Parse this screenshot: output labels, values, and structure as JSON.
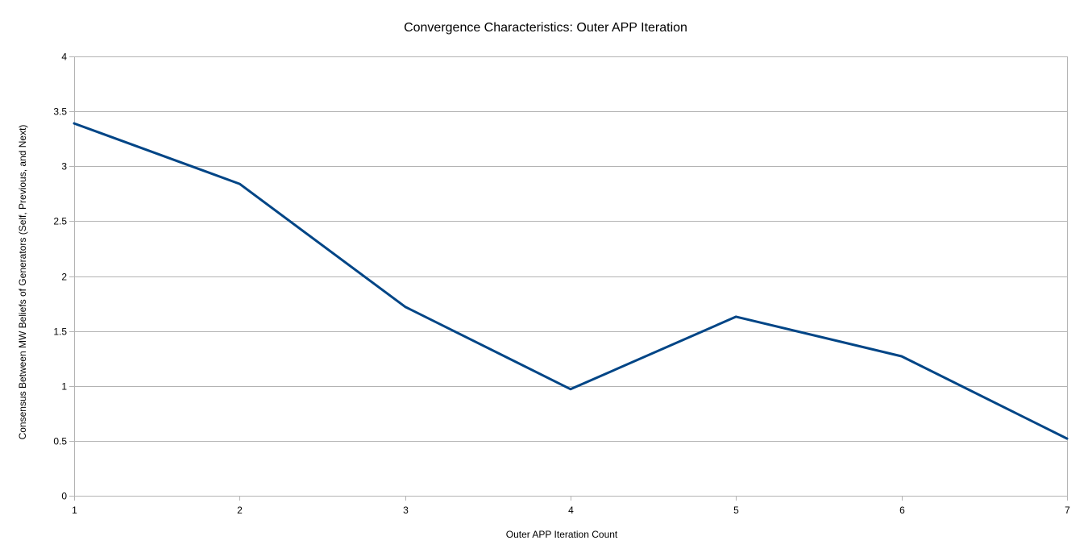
{
  "chart_data": {
    "type": "line",
    "title": "Convergence Characteristics: Outer APP Iteration",
    "xlabel": "Outer APP Iteration Count",
    "ylabel": "Consensus Between MW Beliefs of Generators (Self, Previous, and Next)",
    "x": [
      1,
      2,
      3,
      4,
      5,
      6,
      7
    ],
    "x_tick_labels": [
      "1",
      "2",
      "3",
      "4",
      "5",
      "6",
      "7"
    ],
    "y_ticks": [
      0,
      0.5,
      1,
      1.5,
      2,
      2.5,
      3,
      3.5,
      4
    ],
    "y_tick_labels": [
      "0",
      "0.5",
      "1",
      "1.5",
      "2",
      "2.5",
      "3",
      "3.5",
      "4"
    ],
    "xlim": [
      1,
      7
    ],
    "ylim": [
      0,
      4
    ],
    "grid": "horizontal",
    "legend": "none",
    "series": [
      {
        "values": [
          3.39,
          2.84,
          1.72,
          0.97,
          1.63,
          1.27,
          0.52
        ],
        "color": "#004586"
      }
    ]
  }
}
